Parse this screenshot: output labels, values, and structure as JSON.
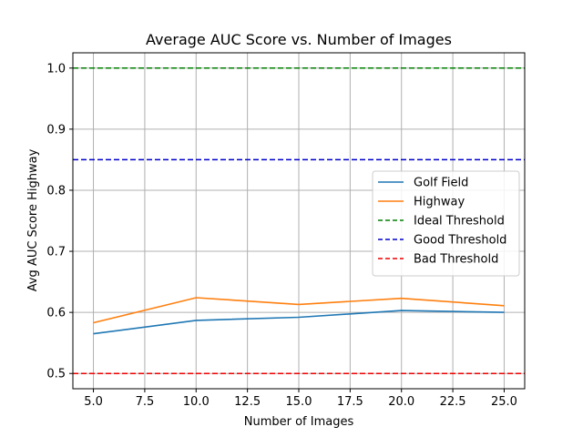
{
  "chart_data": {
    "type": "line",
    "title": "Average AUC Score vs. Number of Images",
    "xlabel": "Number of Images",
    "ylabel": "Avg AUC Score Highway",
    "xlim": [
      4.0,
      26.0
    ],
    "ylim": [
      0.475,
      1.025
    ],
    "xticks": [
      5.0,
      7.5,
      10.0,
      12.5,
      15.0,
      17.5,
      20.0,
      22.5,
      25.0
    ],
    "xtick_labels": [
      "5.0",
      "7.5",
      "10.0",
      "12.5",
      "15.0",
      "17.5",
      "20.0",
      "22.5",
      "25.0"
    ],
    "yticks": [
      0.5,
      0.6,
      0.7,
      0.8,
      0.9,
      1.0
    ],
    "ytick_labels": [
      "0.5",
      "0.6",
      "0.7",
      "0.8",
      "0.9",
      "1.0"
    ],
    "grid": true,
    "legend_position": "center-right",
    "x": [
      5,
      10,
      15,
      20,
      25
    ],
    "series": [
      {
        "name": "Golf Field",
        "values": [
          0.565,
          0.587,
          0.592,
          0.603,
          0.6
        ],
        "color": "#1f77b4",
        "style": "solid"
      },
      {
        "name": "Highway",
        "values": [
          0.583,
          0.624,
          0.613,
          0.623,
          0.611
        ],
        "color": "#ff7f0e",
        "style": "solid"
      }
    ],
    "thresholds": [
      {
        "name": "Ideal Threshold",
        "value": 1.0,
        "color": "#008000",
        "style": "dashed"
      },
      {
        "name": "Good Threshold",
        "value": 0.85,
        "color": "#0000cc",
        "style": "dashed"
      },
      {
        "name": "Bad Threshold",
        "value": 0.5,
        "color": "#ee0000",
        "style": "dashed"
      }
    ]
  }
}
